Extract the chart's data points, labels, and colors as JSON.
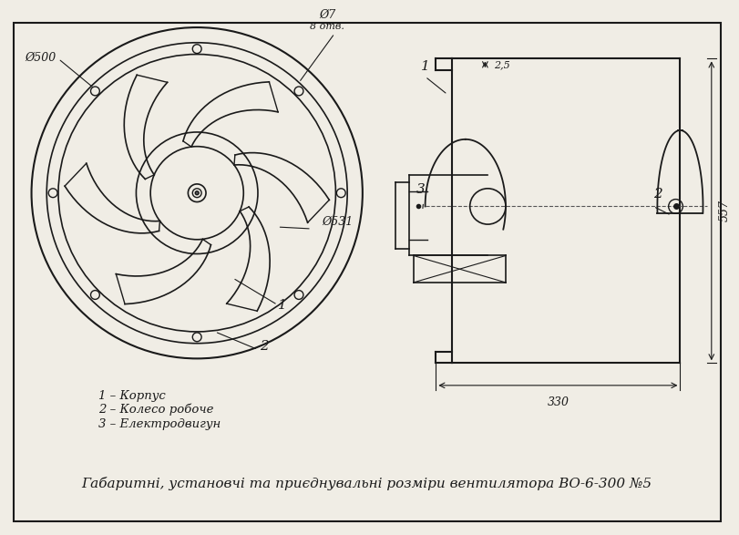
{
  "bg_color": "#f0ede5",
  "line_color": "#1a1a1a",
  "title": "Габаритні, установчі та приєднувальні розміри вентилятора ВО-6-300 №5",
  "legend": [
    "1 – Корпус",
    "2 – Колесо робоче",
    "3 – Електродвигун"
  ],
  "dim_phi500": "Ø500",
  "dim_phi531": "Ø531",
  "dim_phi7": "Ø7",
  "dim_8otv": "8 отв.",
  "dim_25": "2,5",
  "dim_557": "557",
  "dim_330": "330"
}
